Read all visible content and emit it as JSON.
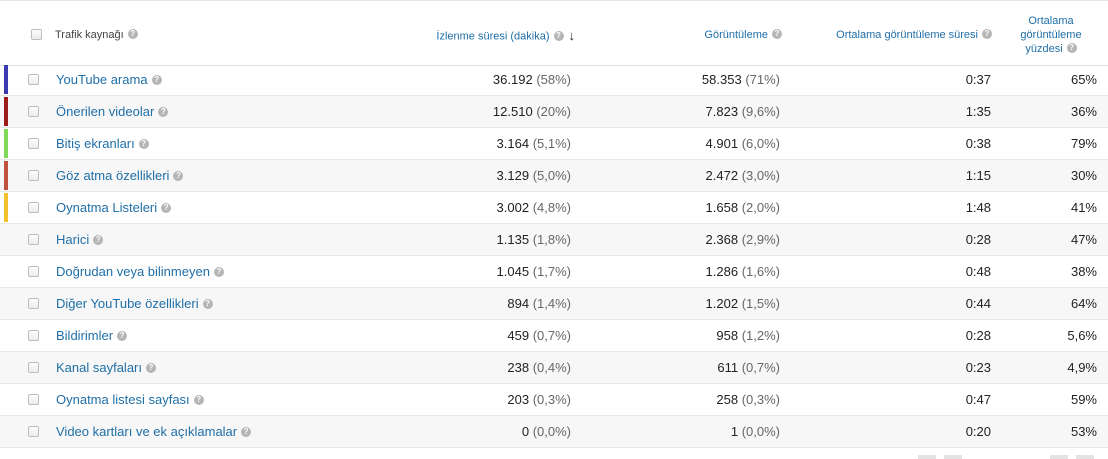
{
  "header": {
    "source_label": "Trafik kaynağı",
    "watch_label": "İzlenme süresi (dakika)",
    "sort_icon": "arrow-down-icon",
    "views_label": "Görüntüleme",
    "avg_duration_label": "Ortalama görüntüleme süresi",
    "avg_pct_label": "Ortalama görüntüleme yüzdesi"
  },
  "help_icon": "question-circle-icon",
  "rows": [
    {
      "source": "YouTube arama",
      "color": "#3b3bb0",
      "watch": "36.192",
      "watch_pct": "(58%)",
      "views": "58.353",
      "views_pct": "(71%)",
      "avg_dur": "0:37",
      "avg_pct": "65%"
    },
    {
      "source": "Önerilen videolar",
      "color": "#9c1b1b",
      "watch": "12.510",
      "watch_pct": "(20%)",
      "views": "7.823",
      "views_pct": "(9,6%)",
      "avg_dur": "1:35",
      "avg_pct": "36%"
    },
    {
      "source": "Bitiş ekranları",
      "color": "#7ed957",
      "watch": "3.164",
      "watch_pct": "(5,1%)",
      "views": "4.901",
      "views_pct": "(6,0%)",
      "avg_dur": "0:38",
      "avg_pct": "79%"
    },
    {
      "source": "Göz atma özellikleri",
      "color": "#c0503f",
      "watch": "3.129",
      "watch_pct": "(5,0%)",
      "views": "2.472",
      "views_pct": "(3,0%)",
      "avg_dur": "1:15",
      "avg_pct": "30%"
    },
    {
      "source": "Oynatma Listeleri",
      "color": "#f2c12e",
      "watch": "3.002",
      "watch_pct": "(4,8%)",
      "views": "1.658",
      "views_pct": "(2,0%)",
      "avg_dur": "1:48",
      "avg_pct": "41%"
    },
    {
      "source": "Harici",
      "color": "",
      "watch": "1.135",
      "watch_pct": "(1,8%)",
      "views": "2.368",
      "views_pct": "(2,9%)",
      "avg_dur": "0:28",
      "avg_pct": "47%"
    },
    {
      "source": "Doğrudan veya bilinmeyen",
      "color": "",
      "watch": "1.045",
      "watch_pct": "(1,7%)",
      "views": "1.286",
      "views_pct": "(1,6%)",
      "avg_dur": "0:48",
      "avg_pct": "38%"
    },
    {
      "source": "Diğer YouTube özellikleri",
      "color": "",
      "watch": "894",
      "watch_pct": "(1,4%)",
      "views": "1.202",
      "views_pct": "(1,5%)",
      "avg_dur": "0:44",
      "avg_pct": "64%"
    },
    {
      "source": "Bildirimler",
      "color": "",
      "watch": "459",
      "watch_pct": "(0,7%)",
      "views": "958",
      "views_pct": "(1,2%)",
      "avg_dur": "0:28",
      "avg_pct": "5,6%"
    },
    {
      "source": "Kanal sayfaları",
      "color": "",
      "watch": "238",
      "watch_pct": "(0,4%)",
      "views": "611",
      "views_pct": "(0,7%)",
      "avg_dur": "0:23",
      "avg_pct": "4,9%"
    },
    {
      "source": "Oynatma listesi sayfası",
      "color": "",
      "watch": "203",
      "watch_pct": "(0,3%)",
      "views": "258",
      "views_pct": "(0,3%)",
      "avg_dur": "0:47",
      "avg_pct": "59%"
    },
    {
      "source": "Video kartları ve ek açıklamalar",
      "color": "",
      "watch": "0",
      "watch_pct": "(0,0%)",
      "views": "1",
      "views_pct": "(0,0%)",
      "avg_dur": "0:20",
      "avg_pct": "53%"
    }
  ]
}
